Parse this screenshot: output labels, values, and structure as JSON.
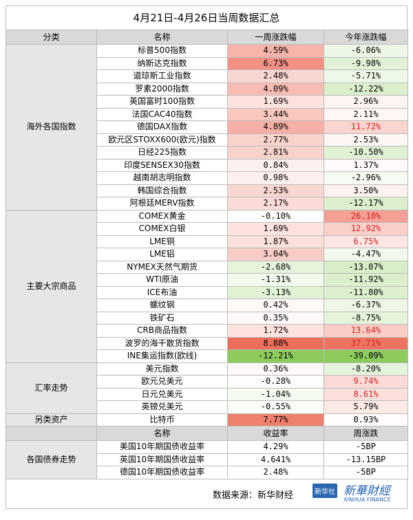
{
  "title": "4月21日-4月26日当周数据汇总",
  "table": {
    "header": [
      "分类",
      "名称",
      "一周涨跌幅",
      "今年涨跌幅"
    ],
    "groups": [
      {
        "category": "海外各国指数",
        "rows": [
          [
            "标普500指数",
            "4.59%",
            "-6.06%"
          ],
          [
            "纳斯达克指数",
            "6.73%",
            "-9.98%"
          ],
          [
            "道琼斯工业指数",
            "2.48%",
            "-5.71%"
          ],
          [
            "罗素2000指数",
            "4.09%",
            "-12.22%"
          ],
          [
            "英国富时100指数",
            "1.69%",
            "2.96%"
          ],
          [
            "法国CAC40指数",
            "3.44%",
            "2.11%"
          ],
          [
            "德国DAX指数",
            "4.89%",
            "11.72%"
          ],
          [
            "欧元区STOXX600(欧元)指数",
            "2.77%",
            "2.53%"
          ],
          [
            "日经225指数",
            "2.81%",
            "-10.50%"
          ],
          [
            "印度SENSEX30指数",
            "0.84%",
            "1.37%"
          ],
          [
            "越南胡志明指数",
            "0.98%",
            "-2.96%"
          ],
          [
            "韩国综合指数",
            "2.53%",
            "3.50%"
          ],
          [
            "阿根廷MERV指数",
            "2.17%",
            "-12.17%"
          ]
        ]
      },
      {
        "category": "主要大宗商品",
        "rows": [
          [
            "COMEX黄金",
            "-0.10%",
            "26.10%"
          ],
          [
            "COMEX白银",
            "1.69%",
            "12.92%"
          ],
          [
            "LME铜",
            "1.87%",
            "6.75%"
          ],
          [
            "LME铝",
            "3.04%",
            "-4.47%"
          ],
          [
            "NYMEX天然气期货",
            "-2.68%",
            "-13.07%"
          ],
          [
            "WTI原油",
            "-1.31%",
            "-11.92%"
          ],
          [
            "ICE布油",
            "-3.13%",
            "-11.80%"
          ],
          [
            "螺纹钢",
            "0.42%",
            "-6.37%"
          ],
          [
            "铁矿石",
            "0.35%",
            "-8.75%"
          ],
          [
            "CRB商品指数",
            "1.72%",
            "13.64%"
          ],
          [
            "波罗的海干散货指数",
            "8.88%",
            "37.71%"
          ],
          [
            "INE集运指数(欧线)",
            "-12.21%",
            "-39.09%"
          ]
        ]
      },
      {
        "category": "汇率走势",
        "rows": [
          [
            "美元指数",
            "0.36%",
            "-8.20%"
          ],
          [
            "欧元兑美元",
            "-0.28%",
            "9.74%"
          ],
          [
            "日元兑美元",
            "-1.04%",
            "8.61%"
          ],
          [
            "英镑兑美元",
            "-0.55%",
            "5.79%"
          ]
        ]
      },
      {
        "category": "另类资产",
        "rows": [
          [
            "比特币",
            "7.77%",
            "0.93%"
          ]
        ]
      }
    ]
  },
  "bonds": {
    "category": "各国债券走势",
    "header": [
      "名称",
      "收益率",
      "周涨跌"
    ],
    "rows": [
      [
        "美国10年期国债收益率",
        "4.29%",
        "-5BP"
      ],
      [
        "英国10年期国债收益率",
        "4.641%",
        "-13.15BP"
      ],
      [
        "德国10年期国债收益率",
        "2.48%",
        "-5BP"
      ]
    ]
  },
  "source": "数据来源：新华财经",
  "logo": {
    "badge": "新华社",
    "brand": "新華財經",
    "english": "XINHUA FINANCE"
  }
}
